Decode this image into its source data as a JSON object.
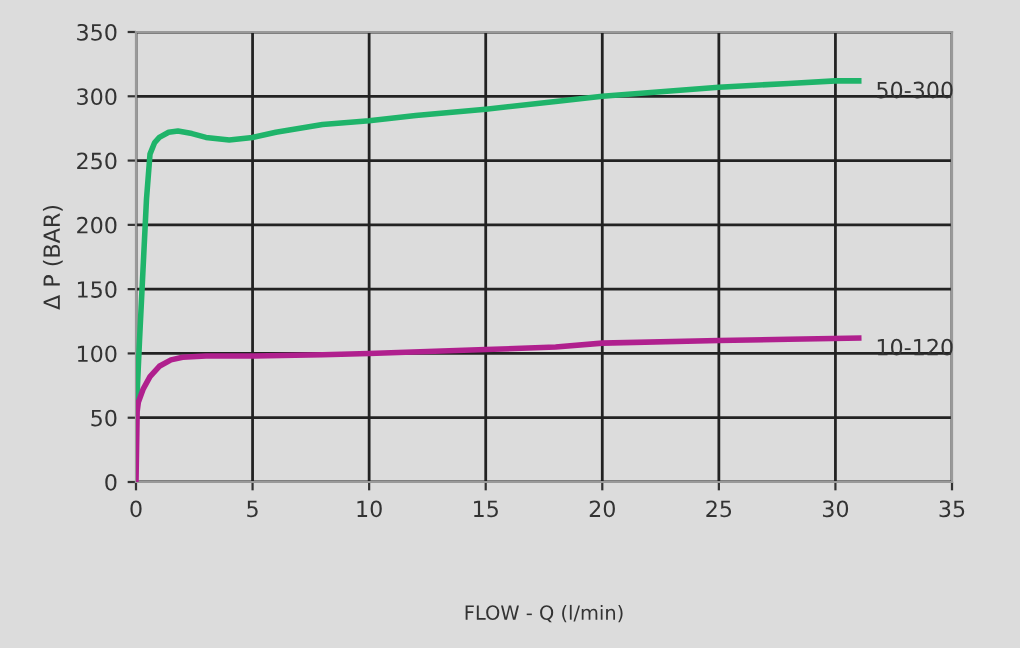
{
  "chart_data": {
    "type": "line",
    "xlabel": "FLOW - Q (l/min)",
    "ylabel": "Δ P (BAR)",
    "xlim": [
      0,
      35
    ],
    "ylim": [
      0,
      350
    ],
    "xticks": [
      0,
      5,
      10,
      15,
      20,
      25,
      30,
      35
    ],
    "yticks": [
      0,
      50,
      100,
      150,
      200,
      250,
      300,
      350
    ],
    "grid": true,
    "legend": false,
    "marker": "none",
    "line_style": "solid",
    "series": [
      {
        "name": "50-300",
        "color": "#1fb46a",
        "x": [
          0,
          0.15,
          0.3,
          0.45,
          0.6,
          0.8,
          1,
          1.4,
          1.8,
          2.4,
          3,
          4,
          5,
          6,
          8,
          10,
          12,
          15,
          18,
          20,
          25,
          28,
          30,
          31
        ],
        "values": [
          50,
          110,
          165,
          220,
          255,
          264,
          268,
          272,
          273,
          271,
          268,
          266,
          268,
          272,
          278,
          281,
          285,
          290,
          296,
          300,
          307,
          310,
          312,
          312
        ]
      },
      {
        "name": "10-120",
        "color": "#b0208e",
        "x": [
          0,
          0.05,
          0.1,
          0.3,
          0.6,
          1,
          1.5,
          2,
          3,
          5,
          8,
          10,
          15,
          18,
          20,
          25,
          28,
          31
        ],
        "values": [
          0,
          55,
          62,
          72,
          82,
          90,
          95,
          97,
          98,
          98,
          99,
          100,
          103,
          105,
          108,
          110,
          111,
          112
        ]
      }
    ]
  }
}
